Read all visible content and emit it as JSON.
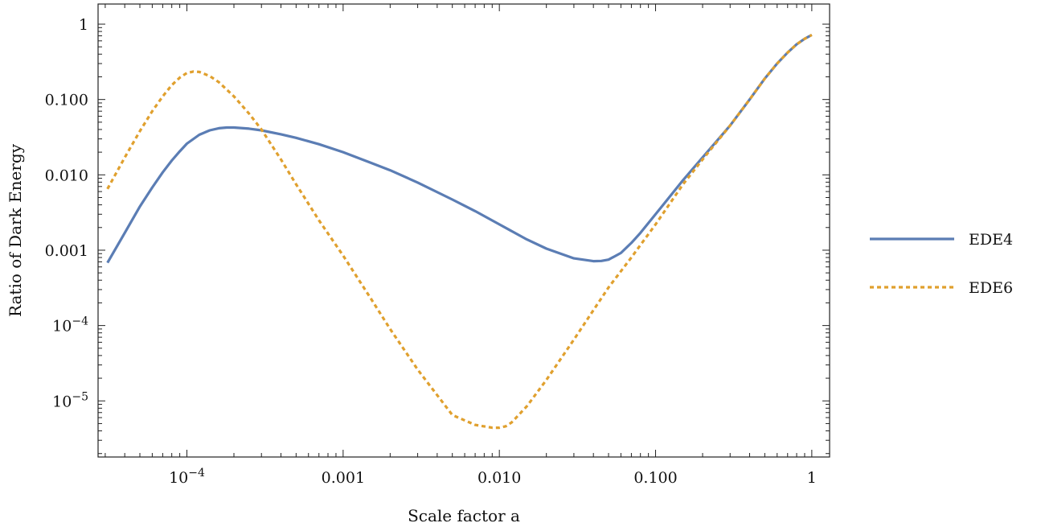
{
  "chart_data": {
    "type": "line",
    "xlabel": "Scale factor a",
    "ylabel": "Ratio of Dark Energy",
    "xscale": "log",
    "yscale": "log",
    "xlim": [
      2.7e-05,
      1.3
    ],
    "ylim": [
      1.8e-06,
      1.85
    ],
    "grid": false,
    "legend_position": "right",
    "x_ticks": [
      {
        "value": 0.0001,
        "base": "10",
        "exp": "−4"
      },
      {
        "value": 0.001,
        "label": "0.001"
      },
      {
        "value": 0.01,
        "label": "0.010"
      },
      {
        "value": 0.1,
        "label": "0.100"
      },
      {
        "value": 1,
        "label": "1"
      }
    ],
    "y_ticks": [
      {
        "value": 1e-05,
        "base": "10",
        "exp": "−5"
      },
      {
        "value": 0.0001,
        "base": "10",
        "exp": "−4"
      },
      {
        "value": 0.001,
        "label": "0.001"
      },
      {
        "value": 0.01,
        "label": "0.010"
      },
      {
        "value": 0.1,
        "label": "0.100"
      },
      {
        "value": 1,
        "label": "1"
      }
    ],
    "series": [
      {
        "name": "EDE4",
        "color": "#5b7db4",
        "dash": "solid",
        "x": [
          3.1e-05,
          4e-05,
          5e-05,
          6e-05,
          7e-05,
          8e-05,
          9e-05,
          0.0001,
          0.00012,
          0.00014,
          0.00016,
          0.00018,
          0.0002,
          0.00025,
          0.0003,
          0.0004,
          0.0005,
          0.0007,
          0.001,
          0.0015,
          0.002,
          0.003,
          0.005,
          0.007,
          0.01,
          0.015,
          0.02,
          0.03,
          0.04,
          0.045,
          0.05,
          0.06,
          0.07,
          0.08,
          0.1,
          0.15,
          0.2,
          0.3,
          0.4,
          0.5,
          0.6,
          0.7,
          0.8,
          0.9,
          1.0
        ],
        "y": [
          0.00068,
          0.0017,
          0.0038,
          0.0068,
          0.0108,
          0.0155,
          0.0205,
          0.026,
          0.034,
          0.039,
          0.0415,
          0.0425,
          0.0425,
          0.041,
          0.039,
          0.0345,
          0.031,
          0.0255,
          0.02,
          0.0145,
          0.0115,
          0.0079,
          0.0047,
          0.0033,
          0.0022,
          0.00139,
          0.00105,
          0.00078,
          0.000715,
          0.00072,
          0.00075,
          0.00092,
          0.00125,
          0.0017,
          0.003,
          0.0085,
          0.017,
          0.045,
          0.1,
          0.19,
          0.3,
          0.42,
          0.54,
          0.64,
          0.72
        ]
      },
      {
        "name": "EDE6",
        "color": "#e0a02e",
        "dash": "dashed",
        "x": [
          3.1e-05,
          4e-05,
          5e-05,
          6e-05,
          7e-05,
          8e-05,
          9e-05,
          0.0001,
          0.00011,
          0.00012,
          0.00014,
          0.00016,
          0.0002,
          0.00025,
          0.0003,
          0.0004,
          0.0005,
          0.0007,
          0.001,
          0.0015,
          0.002,
          0.003,
          0.005,
          0.007,
          0.009,
          0.01,
          0.011,
          0.012,
          0.015,
          0.02,
          0.03,
          0.04,
          0.05,
          0.07,
          0.1,
          0.15,
          0.2,
          0.3,
          0.4,
          0.5,
          0.6,
          0.7,
          0.8,
          0.9,
          1.0
        ],
        "y": [
          0.0065,
          0.017,
          0.038,
          0.07,
          0.11,
          0.155,
          0.195,
          0.225,
          0.235,
          0.232,
          0.205,
          0.17,
          0.11,
          0.065,
          0.04,
          0.016,
          0.0075,
          0.0025,
          0.00085,
          0.00023,
          9e-05,
          2.6e-05,
          6.5e-06,
          4.8e-06,
          4.4e-06,
          4.4e-06,
          4.6e-06,
          5.2e-06,
          8.5e-06,
          1.9e-05,
          6.5e-05,
          0.00016,
          0.00032,
          0.0008,
          0.0022,
          0.0075,
          0.016,
          0.045,
          0.1,
          0.19,
          0.3,
          0.42,
          0.54,
          0.64,
          0.72
        ]
      }
    ]
  }
}
